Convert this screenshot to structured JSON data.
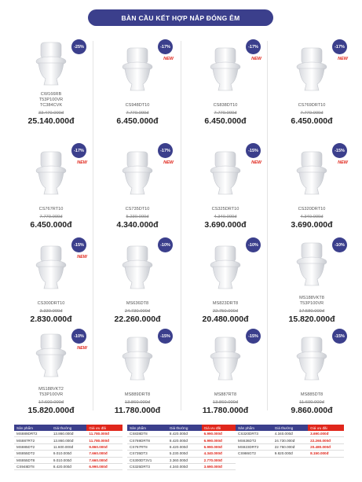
{
  "header": {
    "title": "BÀN CẦU KẾT HỢP NẮP ĐÓNG ÊM"
  },
  "products": [
    {
      "name": [
        "CW166RB",
        "T53P100VR",
        "TC384CVK"
      ],
      "discount": "-25%",
      "old_price": "33.470.000đ",
      "price": "25.140.000đ"
    },
    {
      "name": [
        "CS948DT10"
      ],
      "discount": "-17%",
      "badge": "NEW",
      "old_price": "7.770.000đ",
      "price": "6.450.000đ"
    },
    {
      "name": [
        "CS838DT10"
      ],
      "discount": "-17%",
      "badge": "NEW",
      "old_price": "7.770.000đ",
      "price": "6.450.000đ"
    },
    {
      "name": [
        "CS769DRT10"
      ],
      "discount": "-17%",
      "badge": "NEW",
      "old_price": "7.770.000đ",
      "price": "6.450.000đ"
    },
    {
      "name": [
        "CS767RT10"
      ],
      "discount": "-17%",
      "badge": "NEW",
      "old_price": "7.770.000đ",
      "price": "6.450.000đ"
    },
    {
      "name": [
        "CS735DT10"
      ],
      "discount": "-17%",
      "badge": "NEW",
      "old_price": "5.230.000đ",
      "price": "4.340.000đ"
    },
    {
      "name": [
        "CS325DRT10"
      ],
      "discount": "-15%",
      "badge": "NEW",
      "old_price": "4.340.000đ",
      "price": "3.690.000đ"
    },
    {
      "name": [
        "CS320DRT10"
      ],
      "discount": "-15%",
      "badge": "NEW",
      "old_price": "4.340.000đ",
      "price": "3.690.000đ"
    },
    {
      "name": [
        "CS300DRT10"
      ],
      "discount": "-15%",
      "badge": "NEW",
      "old_price": "3.330.000đ",
      "price": "2.830.000đ"
    },
    {
      "name": [
        "MS636DT8"
      ],
      "discount": "-10%",
      "old_price": "24.730.000đ",
      "price": "22.260.000đ"
    },
    {
      "name": [
        "MS823DRT8"
      ],
      "discount": "-10%",
      "old_price": "22.750.000đ",
      "price": "20.480.000đ"
    },
    {
      "name": [
        "MS188VKT8",
        "T53P100VR"
      ],
      "discount": "-10%",
      "old_price": "17.580.000đ",
      "price": "15.820.000đ"
    },
    {
      "name": [
        "MS188VKT2",
        "T53P100VR"
      ],
      "discount": "-10%",
      "badge": "NEW",
      "old_price": "17.600.000đ",
      "price": "15.820.000đ"
    },
    {
      "name": [
        "MS889DRT8"
      ],
      "discount": "-15%",
      "old_price": "13.860.000đ",
      "price": "11.780.000đ"
    },
    {
      "name": [
        "MS887RT8"
      ],
      "discount": "-15%",
      "old_price": "13.860.000đ",
      "price": "11.780.000đ"
    },
    {
      "name": [
        "MS885DT8"
      ],
      "discount": "-15%",
      "old_price": "11.600.000đ",
      "price": "9.860.000đ"
    }
  ],
  "tables": [
    {
      "header": [
        "Sản phẩm",
        "Giá thường",
        "Giá ưu đãi"
      ],
      "rows": [
        [
          "MS889DRT2",
          "13.860.000đ",
          "11.780.000đ"
        ],
        [
          "MS887RT2",
          "13.860.000đ",
          "11.780.000đ"
        ],
        [
          "MS885DT2",
          "11.600.000đ",
          "9.860.000đ"
        ],
        [
          "MS855DT2",
          "9.010.000đ",
          "7.660.000đ"
        ],
        [
          "MS855DT8",
          "9.010.000đ",
          "7.660.000đ"
        ],
        [
          "CS948DT8",
          "8.420.000đ",
          "6.990.000đ"
        ]
      ]
    },
    {
      "header": [
        "Sản phẩm",
        "Giá thường",
        "Giá ưu đãi"
      ],
      "rows": [
        [
          "CS838DT8",
          "8.420.000đ",
          "6.990.000đ"
        ],
        [
          "CS769DRT8",
          "8.420.000đ",
          "6.990.000đ"
        ],
        [
          "CS767RT8",
          "8.420.000đ",
          "6.990.000đ"
        ],
        [
          "CS735DT3",
          "5.230.000đ",
          "4.340.000đ"
        ],
        [
          "CS300DT3V1",
          "3.360.000đ",
          "2.770.000đ"
        ],
        [
          "CS325DRT3",
          "4.340.000đ",
          "3.690.000đ"
        ]
      ]
    },
    {
      "header": [
        "Sản phẩm",
        "Giá thường",
        "Giá ưu đãi"
      ],
      "rows": [
        [
          "CS320DRT3",
          "4.340.000đ",
          "3.690.000đ"
        ],
        [
          "MS636DT2",
          "24.730.000đ",
          "22.260.000đ"
        ],
        [
          "MS823DRT2",
          "22.760.000đ",
          "20.480.000đ"
        ],
        [
          "CS986GT2",
          "9.820.000đ",
          "8.150.000đ"
        ]
      ]
    }
  ]
}
